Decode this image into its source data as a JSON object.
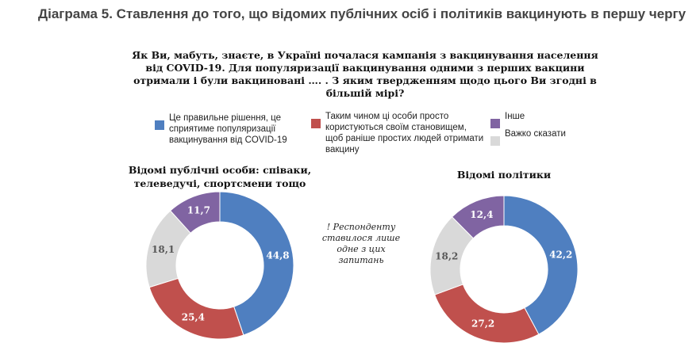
{
  "heading": "Діаграма 5.  Ставлення до того, що відомих публічних осіб і політиків вакцинують в першу чергу",
  "question": "Як Ви, мабуть, знаєте, в Україні почалася кампанія з вакцинування населення від COVID-19. Для популяризації вакцинування одними з перших вакцини отримали і були вакциновані …. . З яким твердженням щодо цього Ви згодні в більшій мірі?",
  "note": "! Респонденту ставилося лише одне з цих запитань",
  "chart_data": [
    {
      "type": "donut",
      "title": "Відомі публічні особи: співаки, телеведучі, спортсмени тощо",
      "categories": [
        "Це правильне рішення, це сприятиме популяризації вакцинування від COVID-19",
        "Таким чином ці особи просто користуються своїм становищем, щоб раніше простих людей отримати вакцину",
        "Важко сказати",
        "Інше"
      ],
      "colors": [
        "#4f7fc0",
        "#c0504d",
        "#d9d9d9",
        "#8064a2"
      ],
      "values": [
        44.8,
        25.4,
        18.1,
        11.7
      ],
      "value_labels": [
        "44,8",
        "25,4",
        "18,1",
        "11,7"
      ]
    },
    {
      "type": "donut",
      "title": "Відомі політики",
      "categories": [
        "Це правильне рішення, це сприятиме популяризації вакцинування від COVID-19",
        "Таким чином ці особи просто користуються своїм становищем, щоб раніше простих людей отримати вакцину",
        "Важко сказати",
        "Інше"
      ],
      "colors": [
        "#4f7fc0",
        "#c0504d",
        "#d9d9d9",
        "#8064a2"
      ],
      "values": [
        42.2,
        27.2,
        18.2,
        12.4
      ],
      "value_labels": [
        "42,2",
        "27,2",
        "18,2",
        "12,4"
      ]
    }
  ]
}
